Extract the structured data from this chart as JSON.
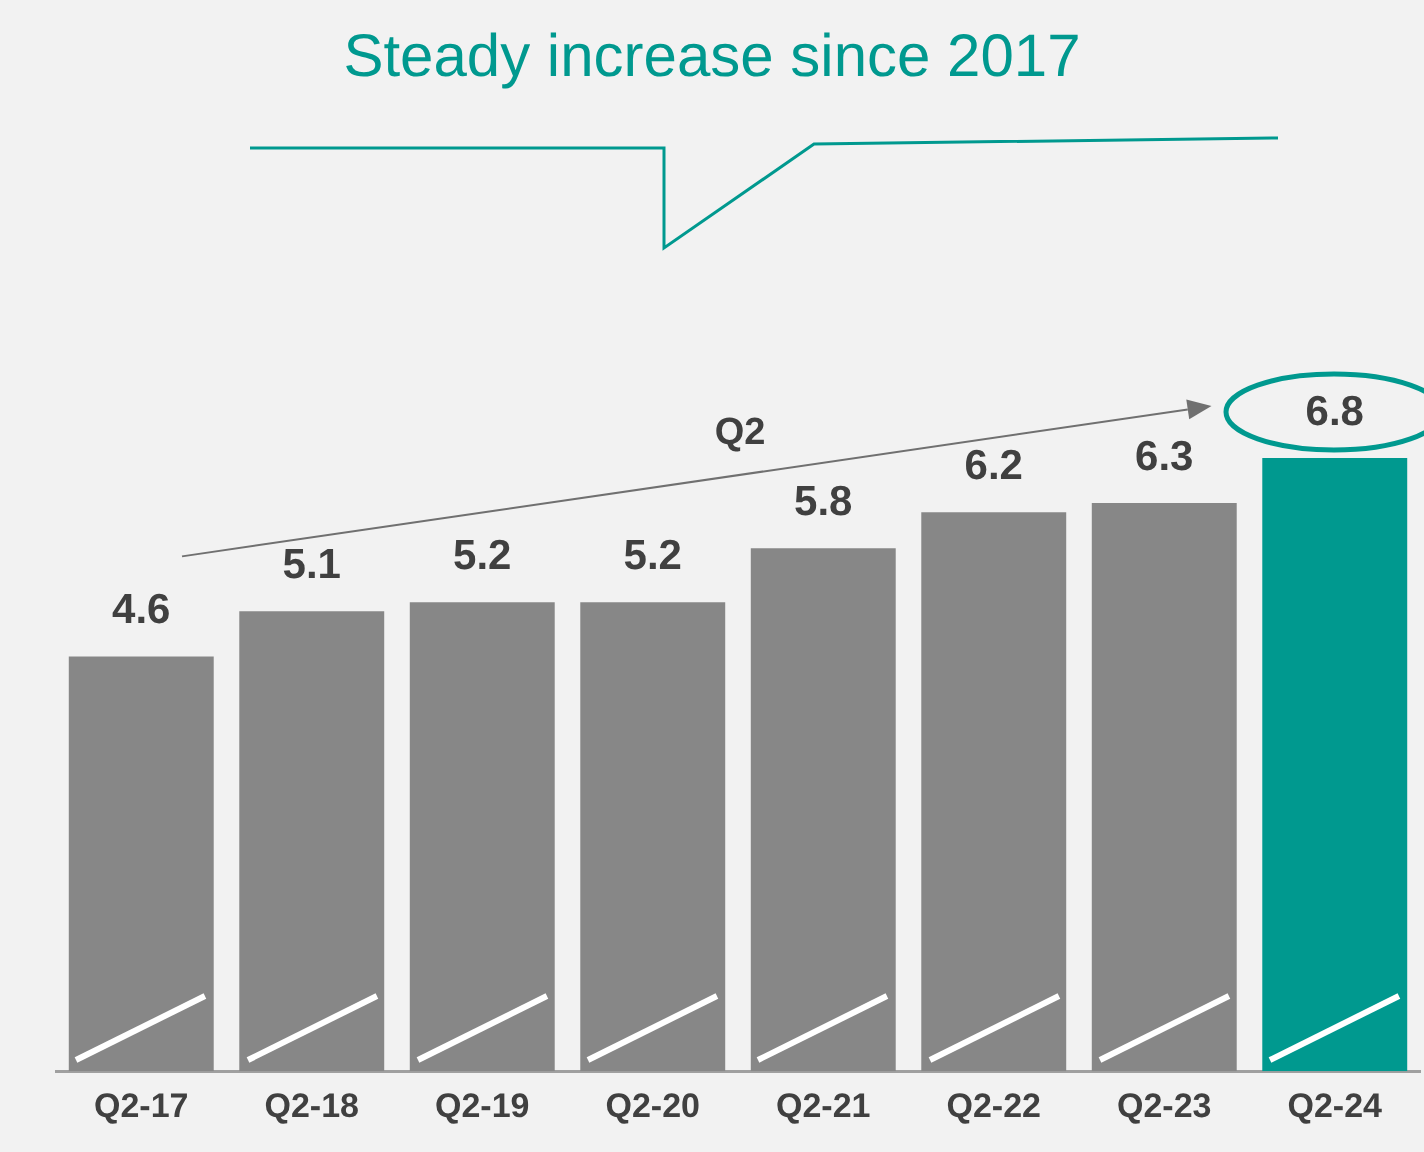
{
  "chart_data": {
    "type": "bar",
    "title": "Steady increase since 2017",
    "categories": [
      "Q2-17",
      "Q2-18",
      "Q2-19",
      "Q2-20",
      "Q2-21",
      "Q2-22",
      "Q2-23",
      "Q2-24"
    ],
    "values": [
      4.6,
      5.1,
      5.2,
      5.2,
      5.8,
      6.2,
      6.3,
      6.8
    ],
    "colors": [
      "#878787",
      "#878787",
      "#878787",
      "#878787",
      "#878787",
      "#878787",
      "#878787",
      "#00998f"
    ],
    "data_labels": true,
    "tick_labels": "x",
    "grid": false,
    "legend": false,
    "annotations": [
      "Q2"
    ]
  }
}
